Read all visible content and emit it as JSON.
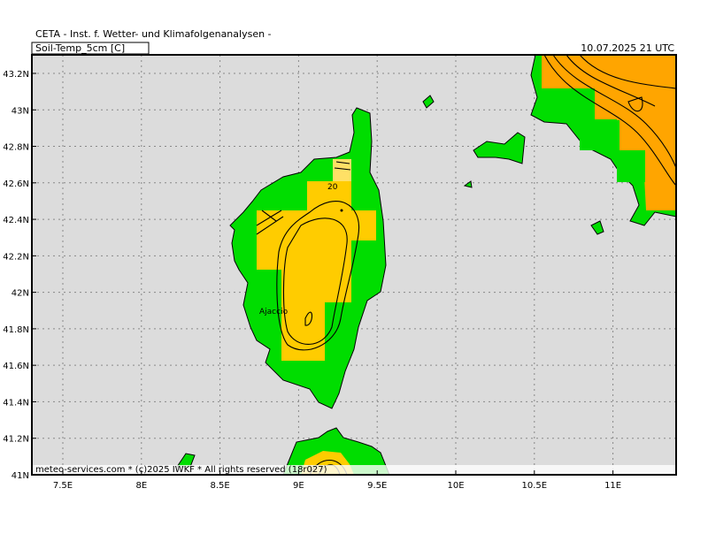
{
  "header": {
    "title": "CETA - Inst. f. Wetter- und Klimafolgenanalysen -",
    "parameter": "Soil-Temp_5cm [C]",
    "valid_time": "10.07.2025 21 UTC"
  },
  "map": {
    "lat_labels": [
      "43.2N",
      "43N",
      "42.8N",
      "42.6N",
      "42.4N",
      "42.2N",
      "42N",
      "41.8N",
      "41.6N",
      "41.4N",
      "41.2N",
      "41N"
    ],
    "lon_labels": [
      "7.5E",
      "8E",
      "8.5E",
      "9E",
      "9.5E",
      "10E",
      "10.5E",
      "11E"
    ],
    "contour_label": "20",
    "place_label": "Ajaccio"
  },
  "footer": "meteo-services.com * (c)2025 IWKF * All rights reserved (18r027)"
}
